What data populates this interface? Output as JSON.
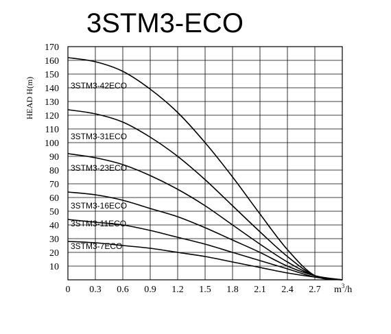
{
  "chart_data": {
    "type": "line",
    "title": "3STM3-ECO",
    "ylabel": "HEAD H(m)",
    "xlabel": "",
    "x_unit": "m³/h",
    "x_unit_base": "m",
    "x_unit_sup": "3",
    "x_unit_tail": "/h",
    "xlim": [
      0,
      3.0
    ],
    "ylim": [
      0,
      170
    ],
    "x_ticks": [
      "0",
      "0.3",
      "0.6",
      "0.9",
      "1.2",
      "1.5",
      "1.8",
      "2.1",
      "2.4",
      "2.7"
    ],
    "y_ticks": [
      "10",
      "20",
      "30",
      "40",
      "50",
      "60",
      "70",
      "80",
      "90",
      "100",
      "110",
      "120",
      "130",
      "140",
      "150",
      "160",
      "170"
    ],
    "grid": true,
    "series": [
      {
        "name": "3STM3-42ECO",
        "x": [
          0,
          0.3,
          0.6,
          0.9,
          1.2,
          1.5,
          1.8,
          2.1,
          2.4,
          2.7,
          3.0
        ],
        "y": [
          162,
          159,
          152,
          139,
          122,
          100,
          75,
          48,
          22,
          3,
          0
        ]
      },
      {
        "name": "3STM3-31ECO",
        "x": [
          0,
          0.3,
          0.6,
          0.9,
          1.2,
          1.5,
          1.8,
          2.1,
          2.4,
          2.7,
          3.0
        ],
        "y": [
          124,
          121,
          115,
          104,
          90,
          73,
          54,
          35,
          17,
          3,
          0
        ]
      },
      {
        "name": "3STM3-23ECO",
        "x": [
          0,
          0.3,
          0.6,
          0.9,
          1.2,
          1.5,
          1.8,
          2.1,
          2.4,
          2.7,
          3.0
        ],
        "y": [
          92,
          89,
          84,
          76,
          66,
          54,
          40,
          26,
          13,
          3,
          0
        ]
      },
      {
        "name": "3STM3-16ECO",
        "x": [
          0,
          0.3,
          0.6,
          0.9,
          1.2,
          1.5,
          1.8,
          2.1,
          2.4,
          2.7,
          3.0
        ],
        "y": [
          64,
          62,
          58,
          52,
          46,
          38,
          29,
          20,
          10,
          3,
          0
        ]
      },
      {
        "name": "3STM3-11ECO",
        "x": [
          0,
          0.3,
          0.6,
          0.9,
          1.2,
          1.5,
          1.8,
          2.1,
          2.4,
          2.7,
          3.0
        ],
        "y": [
          44,
          42,
          40,
          36,
          31,
          26,
          20,
          14,
          8,
          2,
          0
        ]
      },
      {
        "name": "3STM3-7ECO",
        "x": [
          0,
          0.3,
          0.6,
          0.9,
          1.2,
          1.5,
          1.8,
          2.1,
          2.4,
          2.7,
          3.0
        ],
        "y": [
          28,
          27,
          25,
          23,
          20,
          17,
          13,
          9,
          5,
          2,
          0
        ]
      }
    ]
  }
}
